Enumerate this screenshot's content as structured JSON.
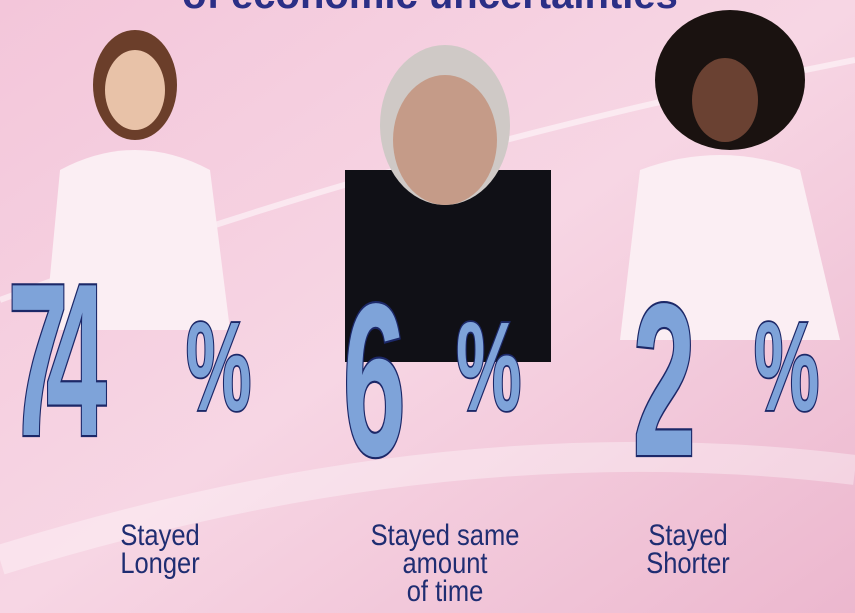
{
  "header": {
    "title": "of economic uncertainties"
  },
  "stats": [
    {
      "value": "74",
      "suffix": "%",
      "label": [
        "Stayed",
        "Longer"
      ]
    },
    {
      "value": "6",
      "suffix": "%",
      "label": [
        "Stayed same",
        "amount",
        "of time"
      ]
    },
    {
      "value": "2",
      "suffix": "%",
      "label": [
        "Stayed",
        "Shorter"
      ]
    }
  ]
}
